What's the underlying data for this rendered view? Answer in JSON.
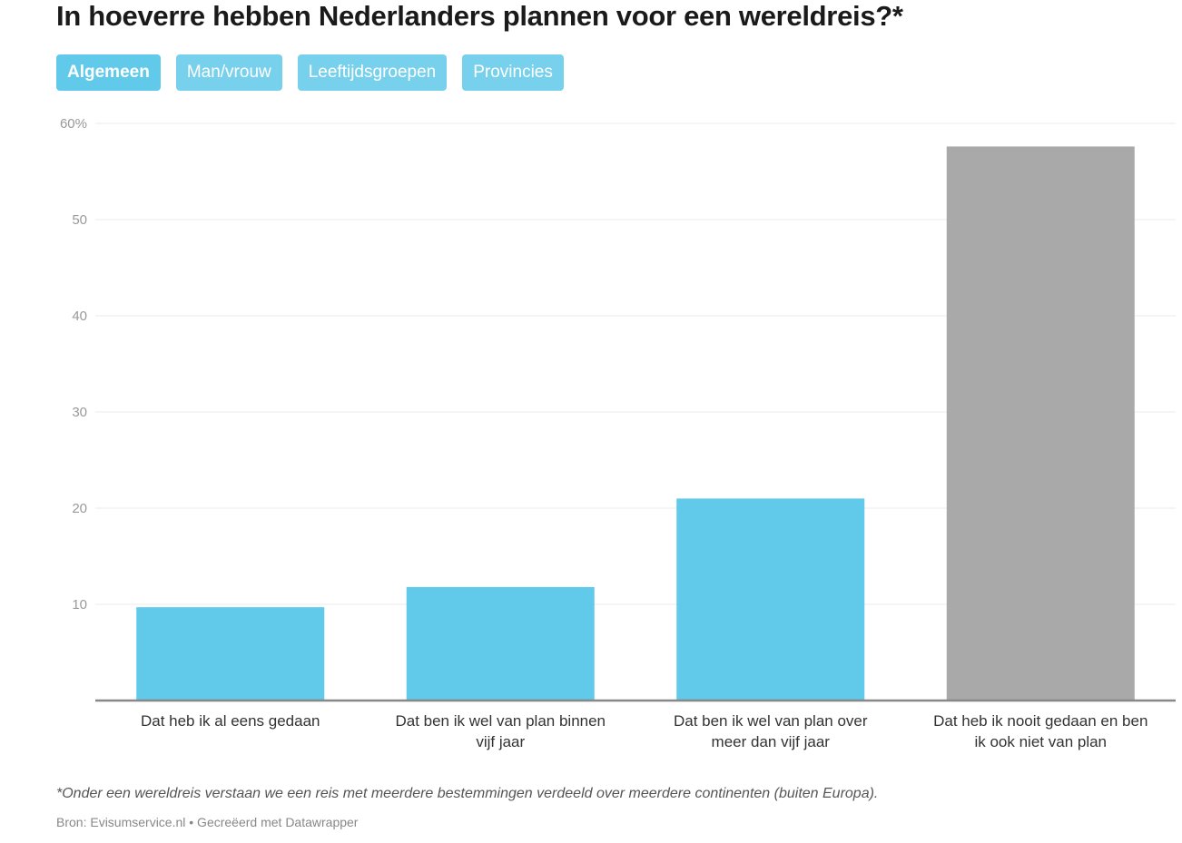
{
  "title": "In hoeverre hebben Nederlanders plannen voor een wereldreis?*",
  "tabs": [
    {
      "label": "Algemeen",
      "active": true
    },
    {
      "label": "Man/vrouw",
      "active": false
    },
    {
      "label": "Leeftijdsgroepen",
      "active": false
    },
    {
      "label": "Provincies",
      "active": false
    }
  ],
  "colors": {
    "accent": "#61c9e9",
    "highlight": "#a9a9a9",
    "grid": "#ebebeb",
    "axis": "#888888"
  },
  "chart_data": {
    "type": "bar",
    "categories": [
      "Dat heb ik al eens gedaan",
      "Dat ben ik wel van plan binnen vijf jaar",
      "Dat ben ik wel van plan over meer dan vijf jaar",
      "Dat heb ik nooit gedaan en ben ik ook niet van plan"
    ],
    "category_lines": [
      [
        "Dat heb ik al eens gedaan"
      ],
      [
        "Dat ben ik wel van plan binnen",
        "vijf jaar"
      ],
      [
        "Dat ben ik wel van plan over",
        "meer dan vijf jaar"
      ],
      [
        "Dat heb ik nooit gedaan en ben",
        "ik ook niet van plan"
      ]
    ],
    "values": [
      9.7,
      11.8,
      21,
      57.6
    ],
    "bar_colors": [
      "#61c9e9",
      "#61c9e9",
      "#61c9e9",
      "#a9a9a9"
    ],
    "ylim": [
      0,
      60
    ],
    "yticks": [
      10,
      20,
      30,
      40,
      50,
      60
    ],
    "ytick_labels": [
      "10",
      "20",
      "30",
      "40",
      "50",
      "60%"
    ],
    "grid": true
  },
  "footnote": "*Onder een wereldreis verstaan we een reis met meerdere bestemmingen verdeeld over meerdere continenten (buiten Europa).",
  "source": "Bron: Evisumservice.nl • Gecreëerd met Datawrapper"
}
